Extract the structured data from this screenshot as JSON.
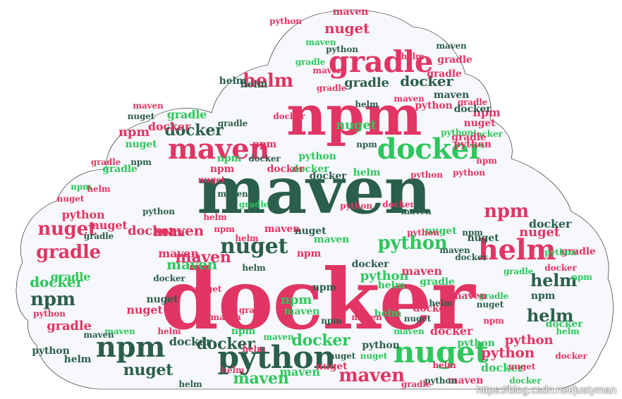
{
  "colors": {
    "cloud_fill": "#f7f8fc",
    "cloud_stroke": "#111111",
    "pink": "#e13563",
    "green": "#2fc65d",
    "dark_green": "#2b5e4b",
    "rose": "#cf5a78"
  },
  "words": [
    {
      "text": "docker",
      "color": "pink"
    },
    {
      "text": "maven",
      "color": "dark_green"
    },
    {
      "text": "npm",
      "color": "pink"
    },
    {
      "text": "gradle",
      "color": "pink"
    },
    {
      "text": "maven",
      "color": "pink"
    },
    {
      "text": "maven",
      "color": "pink"
    },
    {
      "text": "docker",
      "color": "green"
    },
    {
      "text": "nuget",
      "color": "green"
    },
    {
      "text": "python",
      "color": "dark_green"
    },
    {
      "text": "npm",
      "color": "dark_green"
    },
    {
      "text": "helm",
      "color": "pink"
    },
    {
      "text": "nuget",
      "color": "dark_green"
    },
    {
      "text": "python",
      "color": "green"
    },
    {
      "text": "maven",
      "color": "pink"
    },
    {
      "text": "docker",
      "color": "dark_green"
    },
    {
      "text": "helm",
      "color": "dark_green"
    },
    {
      "text": "npm",
      "color": "pink"
    },
    {
      "text": "helm",
      "color": "pink"
    },
    {
      "text": "nuget",
      "color": "pink"
    },
    {
      "text": "gradle",
      "color": "pink"
    },
    {
      "text": "npm",
      "color": "dark_green"
    },
    {
      "text": "docker",
      "color": "dark_green"
    },
    {
      "text": "nuget",
      "color": "dark_green"
    },
    {
      "text": "docker",
      "color": "green"
    },
    {
      "text": "maven",
      "color": "green"
    },
    {
      "text": "maven",
      "color": "green"
    },
    {
      "text": "gradle",
      "color": "dark_green"
    },
    {
      "text": "docker",
      "color": "dark_green"
    },
    {
      "text": "nuget",
      "color": "pink"
    },
    {
      "text": "maven",
      "color": "pink"
    },
    {
      "text": "helm",
      "color": "dark_green"
    },
    {
      "text": "docker",
      "color": "green"
    },
    {
      "text": "nuget",
      "color": "pink"
    },
    {
      "text": "maven",
      "color": "pink"
    },
    {
      "text": "python",
      "color": "pink"
    },
    {
      "text": "gradle",
      "color": "green"
    },
    {
      "text": "python",
      "color": "green"
    },
    {
      "text": "maven",
      "color": "pink"
    },
    {
      "text": "gradle",
      "color": "pink"
    },
    {
      "text": "helm",
      "color": "pink"
    },
    {
      "text": "nuget",
      "color": "pink"
    },
    {
      "text": "npm",
      "color": "green"
    },
    {
      "text": "python",
      "color": "dark_green"
    },
    {
      "text": "maven",
      "color": "green"
    },
    {
      "text": "docker",
      "color": "pink"
    },
    {
      "text": "npm",
      "color": "pink"
    },
    {
      "text": "helm",
      "color": "dark_green"
    },
    {
      "text": "docker",
      "color": "dark_green"
    },
    {
      "text": "maven",
      "color": "green"
    },
    {
      "text": "gradle",
      "color": "green"
    },
    {
      "text": "docker",
      "color": "pink"
    },
    {
      "text": "python",
      "color": "pink"
    },
    {
      "text": "nuget",
      "color": "green"
    },
    {
      "text": "maven",
      "color": "dark_green"
    },
    {
      "text": "helm",
      "color": "dark_green"
    },
    {
      "text": "gradle",
      "color": "pink"
    },
    {
      "text": "npm",
      "color": "pink"
    },
    {
      "text": "nuget",
      "color": "pink"
    },
    {
      "text": "docker",
      "color": "green"
    },
    {
      "text": "python",
      "color": "pink"
    },
    {
      "text": "maven",
      "color": "dark_green"
    },
    {
      "text": "npm",
      "color": "dark_green"
    },
    {
      "text": "maven",
      "color": "pink"
    },
    {
      "text": "helm",
      "color": "green"
    },
    {
      "text": "nuget",
      "color": "dark_green"
    },
    {
      "text": "docker",
      "color": "dark_green"
    },
    {
      "text": "python",
      "color": "green"
    },
    {
      "text": "gradle",
      "color": "pink"
    },
    {
      "text": "maven",
      "color": "green"
    },
    {
      "text": "docker",
      "color": "pink"
    },
    {
      "text": "npm",
      "color": "dark_green"
    },
    {
      "text": "nuget",
      "color": "dark_green"
    },
    {
      "text": "helm",
      "color": "pink"
    },
    {
      "text": "gradle",
      "color": "green"
    },
    {
      "text": "maven",
      "color": "pink"
    },
    {
      "text": "python",
      "color": "pink"
    },
    {
      "text": "npm",
      "color": "green"
    },
    {
      "text": "docker",
      "color": "dark_green"
    },
    {
      "text": "helm",
      "color": "pink"
    },
    {
      "text": "maven",
      "color": "dark_green"
    },
    {
      "text": "gradle",
      "color": "green"
    },
    {
      "text": "nuget",
      "color": "pink"
    },
    {
      "text": "docker",
      "color": "green"
    },
    {
      "text": "python",
      "color": "dark_green"
    },
    {
      "text": "helm",
      "color": "green"
    },
    {
      "text": "nuget",
      "color": "green"
    },
    {
      "text": "docker",
      "color": "pink"
    },
    {
      "text": "npm",
      "color": "pink"
    },
    {
      "text": "maven",
      "color": "pink"
    },
    {
      "text": "python",
      "color": "pink"
    },
    {
      "text": "gradle",
      "color": "pink"
    },
    {
      "text": "helm",
      "color": "dark_green"
    },
    {
      "text": "docker",
      "color": "dark_green"
    },
    {
      "text": "maven",
      "color": "green"
    },
    {
      "text": "npm",
      "color": "dark_green"
    },
    {
      "text": "nuget",
      "color": "dark_green"
    },
    {
      "text": "python",
      "color": "green"
    },
    {
      "text": "gradle",
      "color": "green"
    },
    {
      "text": "helm",
      "color": "pink"
    },
    {
      "text": "docker",
      "color": "dark_green"
    },
    {
      "text": "maven",
      "color": "pink"
    },
    {
      "text": "nuget",
      "color": "pink"
    },
    {
      "text": "npm",
      "color": "pink"
    },
    {
      "text": "python",
      "color": "pink"
    },
    {
      "text": "gradle",
      "color": "pink"
    },
    {
      "text": "helm",
      "color": "dark_green"
    },
    {
      "text": "docker",
      "color": "pink"
    },
    {
      "text": "maven",
      "color": "green"
    },
    {
      "text": "nuget",
      "color": "dark_green"
    },
    {
      "text": "npm",
      "color": "green"
    },
    {
      "text": "python",
      "color": "dark_green"
    },
    {
      "text": "gradle",
      "color": "dark_green"
    },
    {
      "text": "helm",
      "color": "pink"
    },
    {
      "text": "docker",
      "color": "green"
    },
    {
      "text": "maven",
      "color": "dark_green"
    },
    {
      "text": "nuget",
      "color": "pink"
    },
    {
      "text": "npm",
      "color": "pink"
    },
    {
      "text": "python",
      "color": "pink"
    },
    {
      "text": "gradle",
      "color": "green"
    },
    {
      "text": "helm",
      "color": "green"
    },
    {
      "text": "docker",
      "color": "pink"
    },
    {
      "text": "maven",
      "color": "dark_green"
    },
    {
      "text": "nuget",
      "color": "dark_green"
    },
    {
      "text": "npm",
      "color": "dark_green"
    },
    {
      "text": "python",
      "color": "pink"
    },
    {
      "text": "gradle",
      "color": "pink"
    },
    {
      "text": "helm",
      "color": "pink"
    },
    {
      "text": "docker",
      "color": "dark_green"
    },
    {
      "text": "maven",
      "color": "pink"
    },
    {
      "text": "nuget",
      "color": "green"
    },
    {
      "text": "npm",
      "color": "pink"
    },
    {
      "text": "python",
      "color": "green"
    },
    {
      "text": "gradle",
      "color": "dark_green"
    },
    {
      "text": "helm",
      "color": "dark_green"
    },
    {
      "text": "docker",
      "color": "pink"
    },
    {
      "text": "maven",
      "color": "pink"
    },
    {
      "text": "nuget",
      "color": "pink"
    },
    {
      "text": "npm",
      "color": "green"
    },
    {
      "text": "python",
      "color": "pink"
    },
    {
      "text": "gradle",
      "color": "pink"
    },
    {
      "text": "helm",
      "color": "pink"
    },
    {
      "text": "docker",
      "color": "dark_green"
    },
    {
      "text": "maven",
      "color": "green"
    },
    {
      "text": "nuget",
      "color": "dark_green"
    },
    {
      "text": "npm",
      "color": "dark_green"
    },
    {
      "text": "python",
      "color": "dark_green"
    },
    {
      "text": "gradle",
      "color": "green"
    },
    {
      "text": "helm",
      "color": "pink"
    },
    {
      "text": "docker",
      "color": "green"
    },
    {
      "text": "maven",
      "color": "pink"
    },
    {
      "text": "nuget",
      "color": "pink"
    },
    {
      "text": "npm",
      "color": "pink"
    },
    {
      "text": "python",
      "color": "pink"
    },
    {
      "text": "gradle",
      "color": "pink"
    },
    {
      "text": "helm",
      "color": "dark_green"
    },
    {
      "text": "docker",
      "color": "pink"
    },
    {
      "text": "maven",
      "color": "dark_green"
    },
    {
      "text": "nuget",
      "color": "green"
    },
    {
      "text": "npm",
      "color": "pink"
    },
    {
      "text": "python",
      "color": "green"
    },
    {
      "text": "gradle",
      "color": "pink"
    },
    {
      "text": "helm",
      "color": "green"
    },
    {
      "text": "docker",
      "color": "dark_green"
    },
    {
      "text": "maven",
      "color": "pink"
    },
    {
      "text": "nuget",
      "color": "dark_green"
    },
    {
      "text": "npm",
      "color": "dark_green"
    },
    {
      "text": "python",
      "color": "pink"
    },
    {
      "text": "gradle",
      "color": "green"
    },
    {
      "text": "helm",
      "color": "pink"
    },
    {
      "text": "docker",
      "color": "pink"
    },
    {
      "text": "maven",
      "color": "green"
    },
    {
      "text": "nuget",
      "color": "pink"
    },
    {
      "text": "npm",
      "color": "green"
    },
    {
      "text": "python",
      "color": "dark_green"
    },
    {
      "text": "gradle",
      "color": "pink"
    },
    {
      "text": "helm",
      "color": "dark_green"
    },
    {
      "text": "docker",
      "color": "green"
    },
    {
      "text": "maven",
      "color": "pink"
    },
    {
      "text": "nuget",
      "color": "dark_green"
    },
    {
      "text": "npm",
      "color": "pink"
    },
    {
      "text": "python",
      "color": "pink"
    },
    {
      "text": "gradle",
      "color": "dark_green"
    },
    {
      "text": "helm",
      "color": "pink"
    }
  ],
  "watermark": "https://blog.csdn.net/justyman"
}
